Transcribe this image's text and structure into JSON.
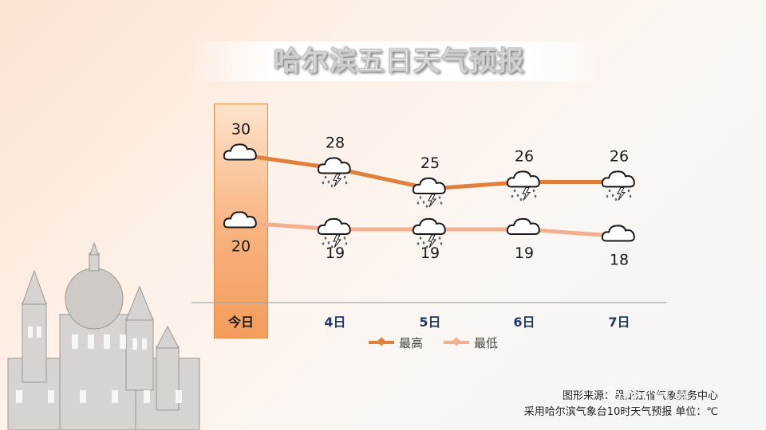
{
  "title": "哈尔滨五日天气预报",
  "colors": {
    "high": "#e0803a",
    "low": "#f2b08e",
    "axis": "#a6a6a6",
    "today": "#f39c5c",
    "day_text": "#1f3864"
  },
  "legend": {
    "high": "最高",
    "low": "最低"
  },
  "footer": {
    "source": "图形来源：黑龙江省气象服务中心",
    "note": "采用哈尔滨气象台10时天气预报 单位：℃"
  },
  "watermark": "龙江气象",
  "chart_data": {
    "type": "line",
    "categories": [
      "今日",
      "4日",
      "5日",
      "6日",
      "7日"
    ],
    "series": [
      {
        "name": "最高",
        "values": [
          30,
          28,
          25,
          26,
          26
        ]
      },
      {
        "name": "最低",
        "values": [
          20,
          19,
          19,
          19,
          18
        ]
      }
    ],
    "weather_icons": {
      "high": [
        "cloudy",
        "thunder-rain",
        "thunder-rain",
        "thunder-rain",
        "thunder-rain"
      ],
      "low": [
        "cloudy",
        "thunder-rain",
        "thunder-rain",
        "cloudy",
        "cloudy"
      ]
    },
    "highlight_category": "今日",
    "xlabel": "",
    "ylabel": ""
  }
}
